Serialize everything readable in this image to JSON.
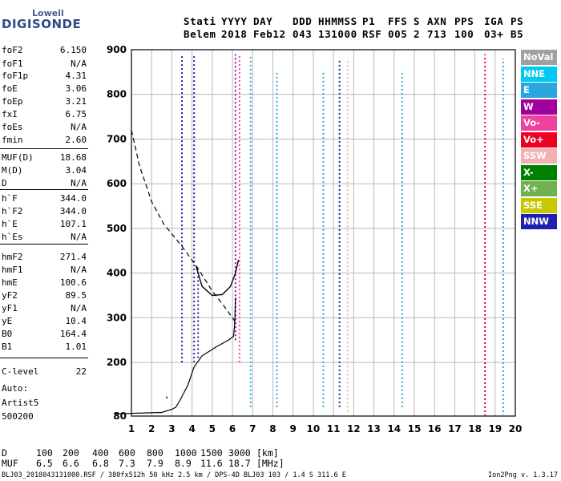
{
  "logo": {
    "line1": "Lowell",
    "line2": "DIGISONDE"
  },
  "header": {
    "labels": [
      "Stati",
      "YYYY",
      "DAY",
      "DDD",
      "HHMMSS",
      "P1",
      "FFS",
      "S",
      "AXN",
      "PPS",
      "IGA",
      "PS"
    ],
    "values": [
      "Belem",
      "2018",
      "Feb12",
      "043",
      "131000",
      "RSF",
      "005",
      "2",
      "713",
      "100",
      "03+",
      "B5"
    ]
  },
  "params": [
    {
      "label": "foF2",
      "value": "6.150"
    },
    {
      "label": "foF1",
      "value": "N/A"
    },
    {
      "label": "foF1p",
      "value": "4.31"
    },
    {
      "label": "foE",
      "value": "3.06"
    },
    {
      "label": "foEp",
      "value": "3.21"
    },
    {
      "label": "fxI",
      "value": "6.75"
    },
    {
      "label": "foEs",
      "value": "N/A"
    },
    {
      "label": "fmin",
      "value": "2.60"
    },
    {
      "label": "MUF(D)",
      "value": "18.68"
    },
    {
      "label": "M(D)",
      "value": "3.04"
    },
    {
      "label": "D",
      "value": "N/A"
    },
    {
      "label": "h`F",
      "value": "344.0"
    },
    {
      "label": "h`F2",
      "value": "344.0"
    },
    {
      "label": "h`E",
      "value": "107.1"
    },
    {
      "label": "h`Es",
      "value": "N/A"
    },
    {
      "label": "hmF2",
      "value": "271.4"
    },
    {
      "label": "hmF1",
      "value": "N/A"
    },
    {
      "label": "hmE",
      "value": "100.6"
    },
    {
      "label": "yF2",
      "value": "89.5"
    },
    {
      "label": "yF1",
      "value": "N/A"
    },
    {
      "label": "yE",
      "value": "10.4"
    },
    {
      "label": "B0",
      "value": "164.4"
    },
    {
      "label": "B1",
      "value": "1.01"
    },
    {
      "label": "C-level",
      "value": "22"
    }
  ],
  "auto": {
    "line1": "Auto:",
    "line2": "Artist5",
    "line3": "500200"
  },
  "legend": [
    {
      "label": "NoVal",
      "color": "#a0a0a0"
    },
    {
      "label": "NNE",
      "color": "#00c8f0"
    },
    {
      "label": "E",
      "color": "#29a8e0"
    },
    {
      "label": "W",
      "color": "#a000a0"
    },
    {
      "label": "Vo-",
      "color": "#f040a0"
    },
    {
      "label": "Vo+",
      "color": "#f00020"
    },
    {
      "label": "SSW",
      "color": "#f4b0b0"
    },
    {
      "label": "X-",
      "color": "#008000"
    },
    {
      "label": "X+",
      "color": "#70b050"
    },
    {
      "label": "SSE",
      "color": "#c8c800"
    },
    {
      "label": "NNW",
      "color": "#2020b0"
    }
  ],
  "distance_table": {
    "d_label": "D",
    "d_values": [
      "100",
      "200",
      "400",
      "600",
      "800",
      "1000",
      "1500",
      "3000"
    ],
    "d_unit": "[km]",
    "muf_label": "MUF",
    "muf_values": [
      "6.5",
      "6.6",
      "6.8",
      "7.3",
      "7.9",
      "8.9",
      "11.6",
      "18.7"
    ],
    "muf_unit": "[MHz]"
  },
  "footer": {
    "left": "BLJ03_2018043131000.RSF / 380fx512h 50 kHz 2.5 km / DPS-4D BLJ03 103 / 1.4 S 311.6 E",
    "right": "Ion2Png v. 1.3.17"
  },
  "chart_data": {
    "type": "scatter",
    "title": "",
    "xlabel": "",
    "ylabel": "",
    "xlim": [
      1,
      20
    ],
    "ylim": [
      80,
      900
    ],
    "x_ticks": [
      1,
      2,
      3,
      4,
      5,
      6,
      7,
      8,
      9,
      10,
      11,
      12,
      13,
      14,
      15,
      16,
      17,
      18,
      19,
      20
    ],
    "y_ticks": [
      80,
      200,
      300,
      400,
      500,
      600,
      700,
      800,
      900
    ],
    "grid": true,
    "traces": [
      {
        "freq": 2.75,
        "h_start": 120,
        "h_end": 125,
        "color": "#2020b0"
      },
      {
        "freq": 3.5,
        "h_start": 200,
        "h_end": 890,
        "color": "#2020b0"
      },
      {
        "freq": 4.1,
        "h_start": 200,
        "h_end": 890,
        "color": "#2020b0"
      },
      {
        "freq": 4.3,
        "h_start": 210,
        "h_end": 410,
        "color": "#2020b0"
      },
      {
        "freq": 6.15,
        "h_start": 250,
        "h_end": 890,
        "color": "#a000a0"
      },
      {
        "freq": 6.35,
        "h_start": 200,
        "h_end": 890,
        "color": "#f040a0"
      },
      {
        "freq": 6.9,
        "h_start": 100,
        "h_end": 890,
        "color": "#29a8e0"
      },
      {
        "freq": 8.2,
        "h_start": 100,
        "h_end": 850,
        "color": "#29a8e0"
      },
      {
        "freq": 10.5,
        "h_start": 100,
        "h_end": 850,
        "color": "#29a8e0"
      },
      {
        "freq": 11.3,
        "h_start": 100,
        "h_end": 880,
        "color": "#2020b0"
      },
      {
        "freq": 11.7,
        "h_start": 90,
        "h_end": 880,
        "color": "#f4b0b0"
      },
      {
        "freq": 14.4,
        "h_start": 100,
        "h_end": 850,
        "color": "#29a8e0"
      },
      {
        "freq": 18.5,
        "h_start": 80,
        "h_end": 890,
        "color": "#f00020"
      },
      {
        "freq": 19.4,
        "h_start": 80,
        "h_end": 880,
        "color": "#29a8e0"
      }
    ],
    "profile_solid": [
      [
        0.2,
        85
      ],
      [
        2.5,
        88
      ],
      [
        3.0,
        95
      ],
      [
        3.2,
        100
      ],
      [
        3.4,
        115
      ],
      [
        3.8,
        150
      ],
      [
        4.1,
        190
      ],
      [
        4.5,
        215
      ],
      [
        5.2,
        235
      ],
      [
        5.8,
        250
      ],
      [
        6.05,
        258
      ],
      [
        6.1,
        280
      ],
      [
        6.12,
        300
      ],
      [
        6.14,
        330
      ],
      [
        6.15,
        345
      ]
    ],
    "profile_dashed": [
      [
        1.0,
        720
      ],
      [
        1.4,
        640
      ],
      [
        2.0,
        560
      ],
      [
        2.6,
        510
      ],
      [
        3.5,
        460
      ],
      [
        4.3,
        410
      ],
      [
        5.0,
        360
      ],
      [
        5.6,
        325
      ],
      [
        6.0,
        300
      ],
      [
        6.15,
        290
      ]
    ],
    "trace_fit": [
      [
        4.2,
        415
      ],
      [
        4.5,
        370
      ],
      [
        5.0,
        350
      ],
      [
        5.5,
        352
      ],
      [
        5.9,
        370
      ],
      [
        6.15,
        400
      ],
      [
        6.3,
        430
      ]
    ]
  }
}
